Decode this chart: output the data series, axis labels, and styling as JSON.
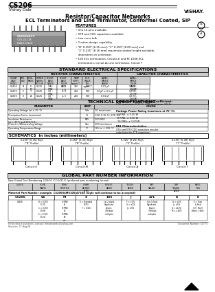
{
  "title_model": "CS206",
  "title_company": "Vishay Dale",
  "main_title1": "Resistor/Capacitor Networks",
  "main_title2": "ECL Terminators and Line Terminator, Conformal Coated, SIP",
  "features_title": "FEATURES",
  "features": [
    "• 4 to 16 pins available",
    "• X7R and C0G capacitors available",
    "• Low cross talk",
    "• Custom design capability",
    "• \"B\" 0.250\" [6.35 mm], \"C\" 0.350\" [8.89 mm] and",
    "   \"E\" 0.325\" [8.26 mm] maximum seated height available,",
    "   dependent on schematic",
    "• 10K ECL terminators, Circuits E and M; 100K ECL",
    "   terminators, Circuit A; Line terminator, Circuit T"
  ],
  "std_elec_title": "STANDARD ELECTRICAL SPECIFICATIONS",
  "res_char_title": "RESISTOR CHARACTERISTICS",
  "cap_char_title": "CAPACITOR CHARACTERISTICS",
  "tech_spec_title": "TECHNICAL SPECIFICATIONS",
  "schematics_title": "SCHEMATICS  in inches (millimeters)",
  "global_part_title": "GLOBAL PART NUMBER INFORMATION",
  "global_sub": "New Global Part Numbering 3/26/02 (CCG4113) (preferred part numbering format)",
  "part_codes_title": "Material Part Number example: CS20604MS105J471KE (style will continue to be accepted)",
  "footnote1": "For technical questions, contact: filmnetworks@vishay.com",
  "footnote2": "Document Number: 31773",
  "footnote3": "Revision: 27-Aug-08",
  "bg_color": "#ffffff",
  "gray_header": "#cccccc",
  "light_gray": "#e8e8e8"
}
